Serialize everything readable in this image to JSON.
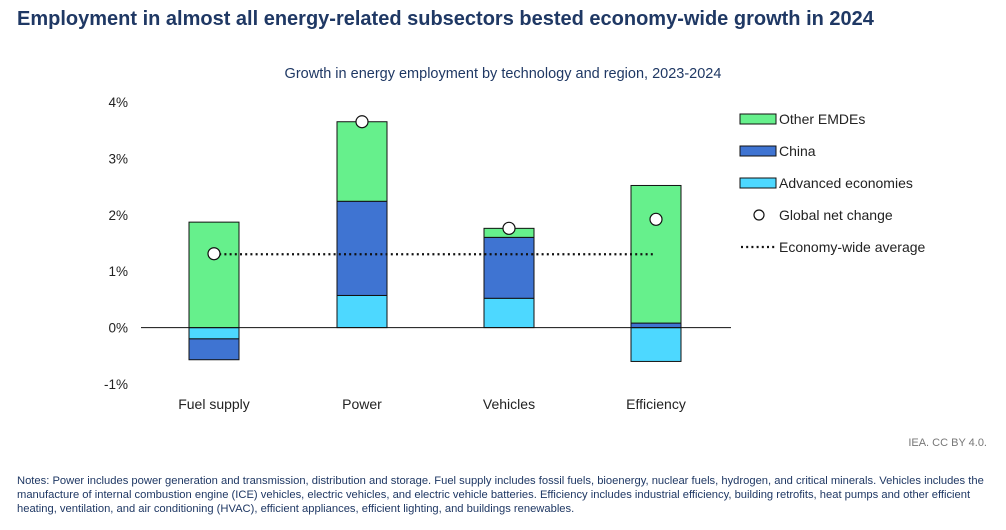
{
  "header": {
    "title": "Employment in almost all energy-related subsectors bested economy-wide growth in 2024"
  },
  "chart_data": {
    "type": "bar",
    "stacked": true,
    "title": "Growth in energy employment by technology and region, 2023-2024",
    "xlabel": "",
    "ylabel": "",
    "ylim": [
      -1,
      4
    ],
    "yticks": [
      -1,
      0,
      1,
      2,
      3,
      4
    ],
    "ytick_labels": [
      "-1%",
      "0%",
      "1%",
      "2%",
      "3%",
      "4%"
    ],
    "categories": [
      "Fuel supply",
      "Power",
      "Vehicles",
      "Efficiency"
    ],
    "series": [
      {
        "name": "Advanced economies",
        "color": "#4dd8ff",
        "values": [
          -0.2,
          0.57,
          0.52,
          -0.6
        ]
      },
      {
        "name": "China",
        "color": "#3f74d2",
        "values": [
          -0.37,
          1.67,
          1.08,
          0.08
        ]
      },
      {
        "name": "Other EMDEs",
        "color": "#66f08c",
        "values": [
          1.87,
          1.41,
          0.16,
          2.44
        ]
      }
    ],
    "global_net_change": {
      "name": "Global net change",
      "values": [
        1.31,
        3.65,
        1.76,
        1.92
      ]
    },
    "economy_wide_average": {
      "name": "Economy-wide average",
      "value": 1.3
    },
    "legend_order": [
      "Other EMDEs",
      "China",
      "Advanced economies",
      "Global net change",
      "Economy-wide average"
    ],
    "legend_position": "right"
  },
  "footer": {
    "source": "IEA. CC BY 4.0.",
    "notes": "Notes: Power includes power generation and transmission, distribution and storage. Fuel supply includes fossil fuels, bioenergy, nuclear fuels, hydrogen, and critical minerals. Vehicles includes the manufacture of internal combustion engine (ICE) vehicles, electric vehicles, and electric vehicle batteries. Efficiency includes industrial efficiency, building retrofits, heat pumps and other efficient heating, ventilation, and air conditioning (HVAC), efficient appliances, efficient lighting, and buildings renewables."
  }
}
